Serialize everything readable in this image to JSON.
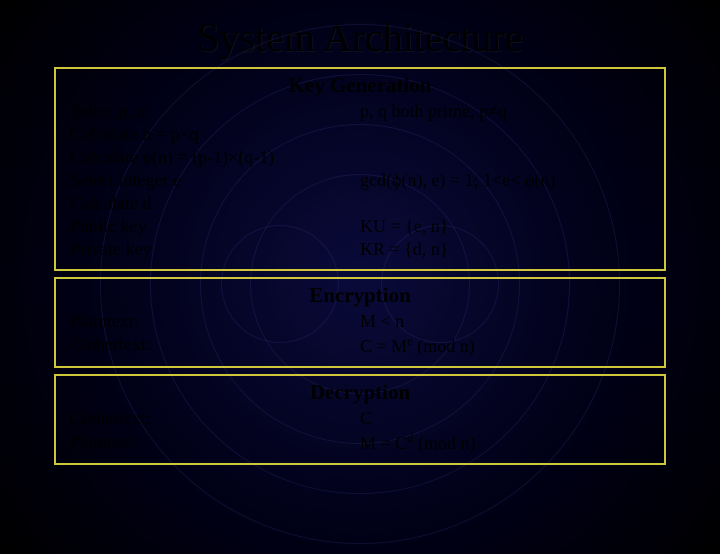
{
  "title": "System Architecture",
  "section_title_color": "#000000",
  "border_color": "#d0c63a",
  "background": {
    "gradient_center": "#0a0a3a",
    "gradient_mid": "#000015",
    "gradient_edge": "#000000",
    "ring_color": "rgba(60,60,140,0.25)"
  },
  "sections": {
    "keygen": {
      "title": "Key Generation",
      "left": [
        "Select p, q",
        "Calculate n = p×q",
        "Calculate ϕ(n) = (p-1)×(q-1)",
        "Select integer e",
        "Calculate d",
        "Public key",
        "Private key"
      ],
      "right": [
        "p, q both prime, p≠q",
        "",
        "",
        "gcd(ϕ(n), e) = 1; 1<e< ϕ(n)",
        "",
        "KU = {e, n}",
        "KR = {d, n}"
      ]
    },
    "encryption": {
      "title": "Encryption",
      "left": [
        "Plaintext:",
        "Ciphertext:"
      ],
      "right_html": [
        "M < n",
        "C = M<sup>e</sup> (mod n)"
      ]
    },
    "decryption": {
      "title": "Decryption",
      "left": [
        "Ciphertext:",
        "Plaintext:"
      ],
      "right_html": [
        "C",
        "M = C<sup>d</sup> (mod n)"
      ]
    }
  }
}
